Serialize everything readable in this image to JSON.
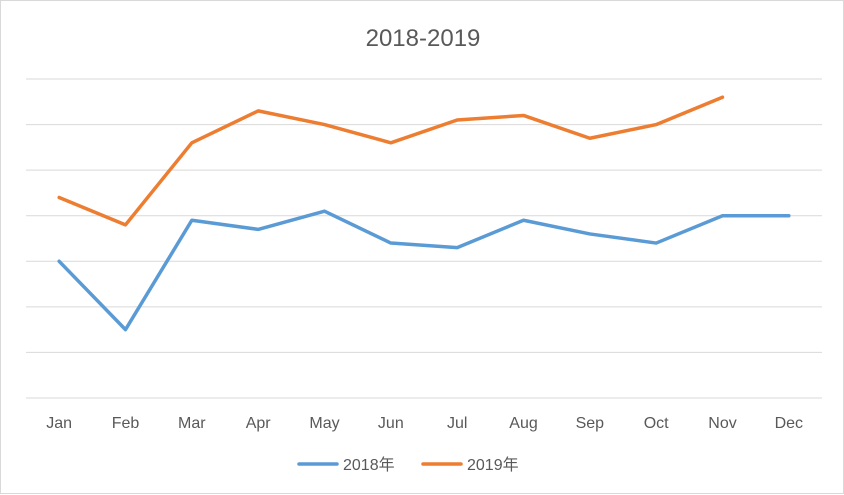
{
  "chart_data": {
    "type": "line",
    "title": "2018-2019",
    "categories": [
      "Jan",
      "Feb",
      "Mar",
      "Apr",
      "May",
      "Jun",
      "Jul",
      "Aug",
      "Sep",
      "Oct",
      "Nov",
      "Dec"
    ],
    "series": [
      {
        "name": "2018年",
        "color": "#5b9bd5",
        "values": [
          3.0,
          1.5,
          3.9,
          3.7,
          4.1,
          3.4,
          3.3,
          3.9,
          3.6,
          3.4,
          4.0,
          4.0
        ]
      },
      {
        "name": "2019年",
        "color": "#ed7d31",
        "values": [
          4.4,
          3.8,
          5.6,
          6.3,
          6.0,
          5.6,
          6.1,
          6.2,
          5.7,
          6.0,
          6.6,
          null
        ]
      }
    ],
    "ylim": [
      0,
      7
    ],
    "grid": true,
    "y_tick_labels_visible": false,
    "legend": "bottom"
  }
}
